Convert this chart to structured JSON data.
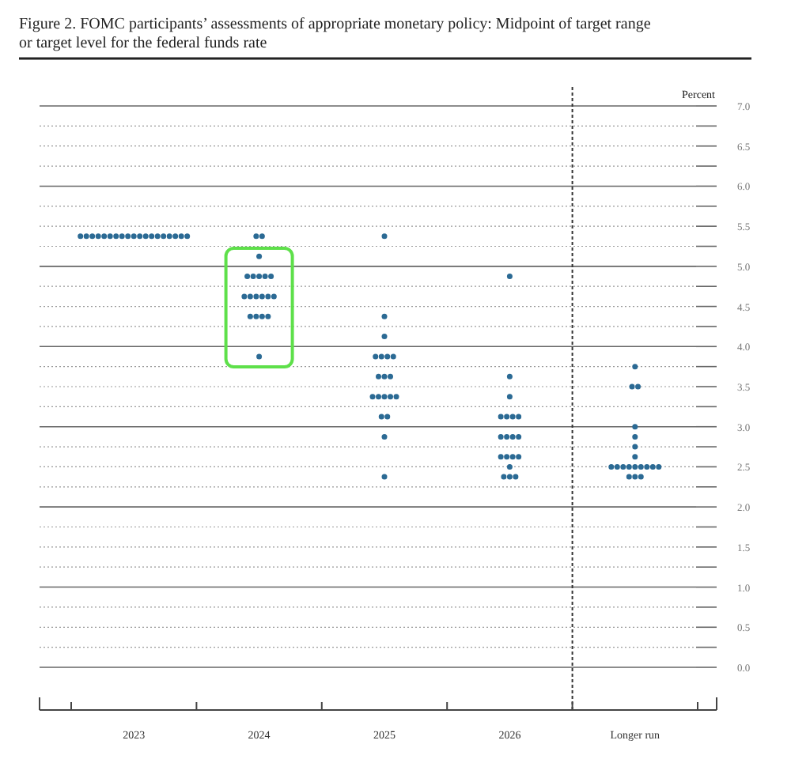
{
  "chart_data": {
    "type": "scatter",
    "title": "Figure 2.  FOMC participants’ assessments of appropriate monetary policy: Midpoint of target range or target level for the federal funds rate",
    "ylabel": "Percent",
    "categories": [
      "2023",
      "2024",
      "2025",
      "2026",
      "Longer run"
    ],
    "series": [
      {
        "color": "#2b6a94",
        "values": [
          5.375,
          5.375,
          5.375,
          4.875,
          3.75
        ]
      },
      {
        "color": "#2b6a94",
        "values": [
          5.375,
          5.375,
          4.375,
          3.625,
          3.5
        ]
      },
      {
        "color": "#2b6a94",
        "values": [
          5.375,
          5.125,
          4.125,
          3.375,
          3.5
        ]
      },
      {
        "color": "#2b6a94",
        "values": [
          5.375,
          4.875,
          3.875,
          3.125,
          3.0
        ]
      },
      {
        "color": "#2b6a94",
        "values": [
          5.375,
          4.875,
          3.875,
          3.125,
          2.875
        ]
      },
      {
        "color": "#2b6a94",
        "values": [
          5.375,
          4.875,
          3.875,
          3.125,
          2.75
        ]
      },
      {
        "color": "#2b6a94",
        "values": [
          5.375,
          4.875,
          3.875,
          3.125,
          2.625
        ]
      },
      {
        "color": "#2b6a94",
        "values": [
          5.375,
          4.875,
          3.625,
          2.875,
          2.5
        ]
      },
      {
        "color": "#2b6a94",
        "values": [
          5.375,
          4.625,
          3.625,
          2.875,
          2.5
        ]
      },
      {
        "color": "#2b6a94",
        "values": [
          5.375,
          4.625,
          3.625,
          2.875,
          2.5
        ]
      },
      {
        "color": "#2b6a94",
        "values": [
          5.375,
          4.625,
          3.375,
          2.875,
          2.5
        ]
      },
      {
        "color": "#2b6a94",
        "values": [
          5.375,
          4.625,
          3.375,
          2.625,
          2.5
        ]
      },
      {
        "color": "#2b6a94",
        "values": [
          5.375,
          4.625,
          3.375,
          2.625,
          2.5
        ]
      },
      {
        "color": "#2b6a94",
        "values": [
          5.375,
          4.625,
          3.375,
          2.625,
          2.5
        ]
      },
      {
        "color": "#2b6a94",
        "values": [
          5.375,
          4.375,
          3.375,
          2.625,
          2.5
        ]
      },
      {
        "color": "#2b6a94",
        "values": [
          5.375,
          4.375,
          3.125,
          2.5,
          2.5
        ]
      },
      {
        "color": "#2b6a94",
        "values": [
          5.375,
          4.375,
          3.125,
          2.375,
          2.375
        ]
      },
      {
        "color": "#2b6a94",
        "values": [
          5.375,
          4.375,
          2.875,
          2.375,
          2.375
        ]
      },
      {
        "color": "#2b6a94",
        "values": [
          5.375,
          3.875,
          2.375,
          2.375,
          2.375
        ]
      }
    ],
    "ylim": [
      0,
      7
    ],
    "yticks": [
      {
        "value": 0,
        "label": "0.0"
      },
      {
        "value": 0.25,
        "label": null
      },
      0.5,
      {
        "value": 0.75,
        "label": null
      },
      {
        "value": 1,
        "label": "1.0"
      },
      {
        "value": 1.25,
        "label": null
      },
      1.5,
      {
        "value": 1.75,
        "label": null
      },
      {
        "value": 2,
        "label": "2.0"
      },
      {
        "value": 2.25,
        "label": null
      },
      2.5,
      {
        "value": 2.75,
        "label": null
      },
      {
        "value": 3,
        "label": "3.0"
      },
      {
        "value": 3.25,
        "label": null
      },
      3.5,
      {
        "value": 3.75,
        "label": null
      },
      {
        "value": 4,
        "label": "4.0"
      },
      {
        "value": 4.25,
        "label": null
      },
      4.5,
      {
        "value": 4.75,
        "label": null
      },
      {
        "value": 5,
        "label": "5.0"
      },
      {
        "value": 5.25,
        "label": null
      },
      5.5,
      {
        "value": 5.75,
        "label": null
      },
      {
        "value": 6,
        "label": "6.0"
      },
      {
        "value": 6.25,
        "label": null
      },
      6.5,
      {
        "value": 6.75,
        "label": null
      },
      {
        "value": 7,
        "label": "7.0"
      }
    ],
    "ref_lines": [
      {
        "axis": "x",
        "value": "Longer run",
        "color": "#333333",
        "line_style": "dashed"
      }
    ],
    "grid": "y",
    "marker": "circle"
  }
}
